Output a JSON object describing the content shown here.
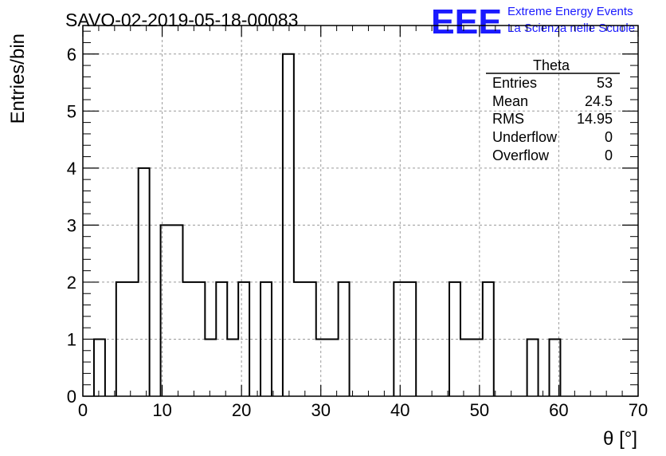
{
  "header": {
    "run_title": "SAVO-02-2019-05-18-00083",
    "logo_text": "EEE",
    "brand_line1": "Extreme Energy Events",
    "brand_line2": "La Scienza nelle Scuole",
    "brand_color": "#1a1aff"
  },
  "stats": {
    "title": "Theta",
    "rows": [
      {
        "label": "Entries",
        "value": "53"
      },
      {
        "label": "Mean",
        "value": "24.5"
      },
      {
        "label": "RMS",
        "value": "14.95"
      },
      {
        "label": "Underflow",
        "value": "0"
      },
      {
        "label": "Overflow",
        "value": "0"
      }
    ]
  },
  "chart_data": {
    "type": "bar",
    "style": "step-histogram",
    "ylabel": "Entries/bin",
    "xlabel": "θ [°]",
    "xlim": [
      0,
      70
    ],
    "ylim": [
      0,
      6.5
    ],
    "grid": true,
    "bin_width": 1.4,
    "x_ticks": [
      0,
      10,
      20,
      30,
      40,
      50,
      60,
      70
    ],
    "y_ticks": [
      0,
      1,
      2,
      3,
      4,
      5,
      6
    ],
    "bin_edges": [
      0,
      1.4,
      2.8,
      4.2,
      5.6,
      7.0,
      8.4,
      9.8,
      11.2,
      12.6,
      14.0,
      15.4,
      16.8,
      18.2,
      19.6,
      21.0,
      22.4,
      23.8,
      25.2,
      26.6,
      28.0,
      29.4,
      30.8,
      32.2,
      33.6,
      35.0,
      36.4,
      37.8,
      39.2,
      40.6,
      42.0,
      43.4,
      44.8,
      46.2,
      47.6,
      49.0,
      50.4,
      51.8,
      53.2,
      54.6,
      56.0,
      57.4,
      58.8,
      60.2,
      61.6,
      63.0,
      64.4,
      65.8,
      67.2,
      68.6,
      70.0
    ],
    "values": [
      0,
      1,
      0,
      2,
      2,
      4,
      0,
      3,
      3,
      2,
      2,
      1,
      2,
      1,
      2,
      0,
      2,
      0,
      6,
      2,
      2,
      1,
      1,
      2,
      0,
      0,
      0,
      0,
      2,
      2,
      0,
      0,
      0,
      2,
      1,
      1,
      2,
      0,
      0,
      0,
      1,
      0,
      1,
      0,
      0,
      0,
      0,
      0,
      0,
      0
    ],
    "line_color": "#000000",
    "grid_color": "#9a9a9a"
  }
}
